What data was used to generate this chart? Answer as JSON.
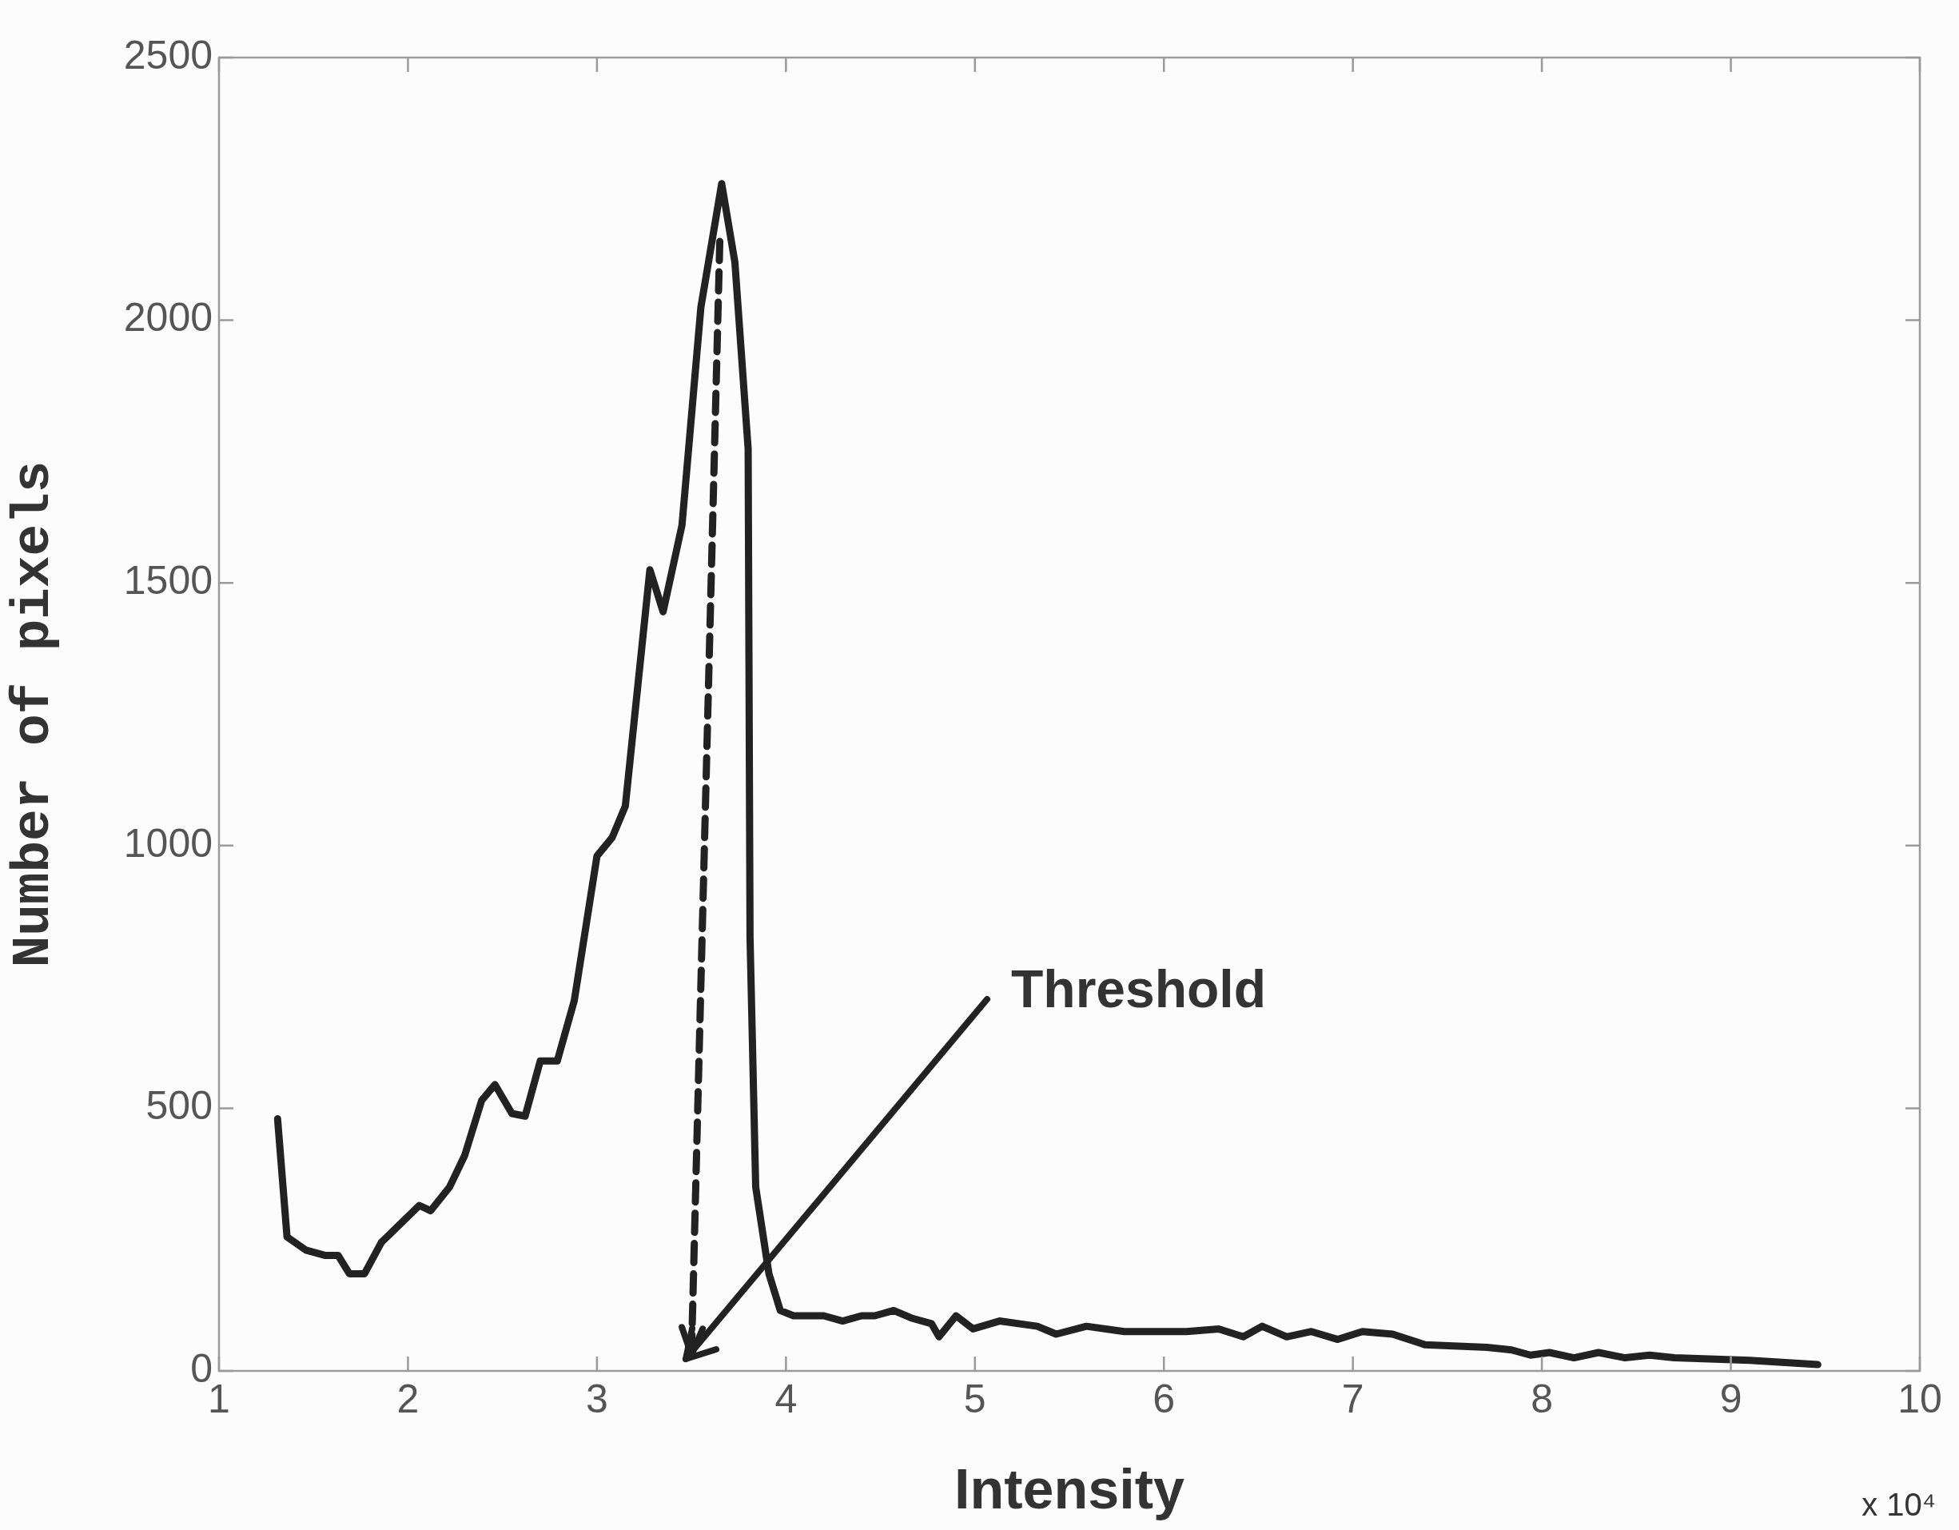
{
  "chart_data": {
    "type": "line",
    "xlabel": "Intensity",
    "ylabel": "Number of pixels",
    "xlim": [
      1,
      10
    ],
    "xticks": [
      1,
      2,
      3,
      4,
      5,
      6,
      7,
      8,
      9,
      10
    ],
    "ylim": [
      0,
      2500
    ],
    "yticks": [
      0,
      500,
      1000,
      1500,
      2000,
      2500
    ],
    "grid": false,
    "legend": false,
    "marker": "none",
    "line_style": "solid",
    "annotations": [
      "x 10⁴",
      "Threshold"
    ],
    "series": [
      {
        "color": "#222222",
        "x": [
          1.31,
          1.36,
          1.46,
          1.56,
          1.63,
          1.69,
          1.77,
          1.86,
          1.96,
          2.06,
          2.12,
          2.22,
          2.3,
          2.39,
          2.46,
          2.55,
          2.62,
          2.7,
          2.79,
          2.88,
          3.0,
          3.08,
          3.15,
          3.28,
          3.35,
          3.45,
          3.55,
          3.66,
          3.73,
          3.8,
          3.81,
          3.84,
          3.91,
          3.97,
          4.04,
          4.2,
          4.3,
          4.4,
          4.47,
          4.57,
          4.67,
          4.77,
          4.81,
          4.9,
          4.99,
          5.13,
          5.33,
          5.43,
          5.59,
          5.79,
          6.12,
          6.29,
          6.42,
          6.52,
          6.65,
          6.78,
          6.92,
          7.05,
          7.21,
          7.38,
          7.71,
          7.84,
          7.94,
          8.04,
          8.17,
          8.3,
          8.44,
          8.57,
          8.7,
          9.1,
          9.46
        ],
        "values": [
          480,
          255,
          230,
          220,
          220,
          185,
          185,
          245,
          280,
          315,
          305,
          350,
          410,
          515,
          545,
          490,
          485,
          590,
          590,
          705,
          980,
          1015,
          1075,
          1525,
          1445,
          1610,
          2025,
          2260,
          2110,
          1755,
          825,
          350,
          185,
          115,
          105,
          105,
          95,
          105,
          105,
          115,
          100,
          90,
          65,
          105,
          80,
          95,
          85,
          70,
          85,
          75,
          75,
          80,
          65,
          85,
          65,
          75,
          60,
          75,
          70,
          50,
          45,
          40,
          30,
          35,
          25,
          35,
          25,
          30,
          25,
          20,
          12
        ]
      },
      {
        "type": "line",
        "line_style": "dashed",
        "color": "#222222",
        "x": [
          3.65,
          3.5
        ],
        "values": [
          2150,
          30
        ]
      }
    ]
  }
}
